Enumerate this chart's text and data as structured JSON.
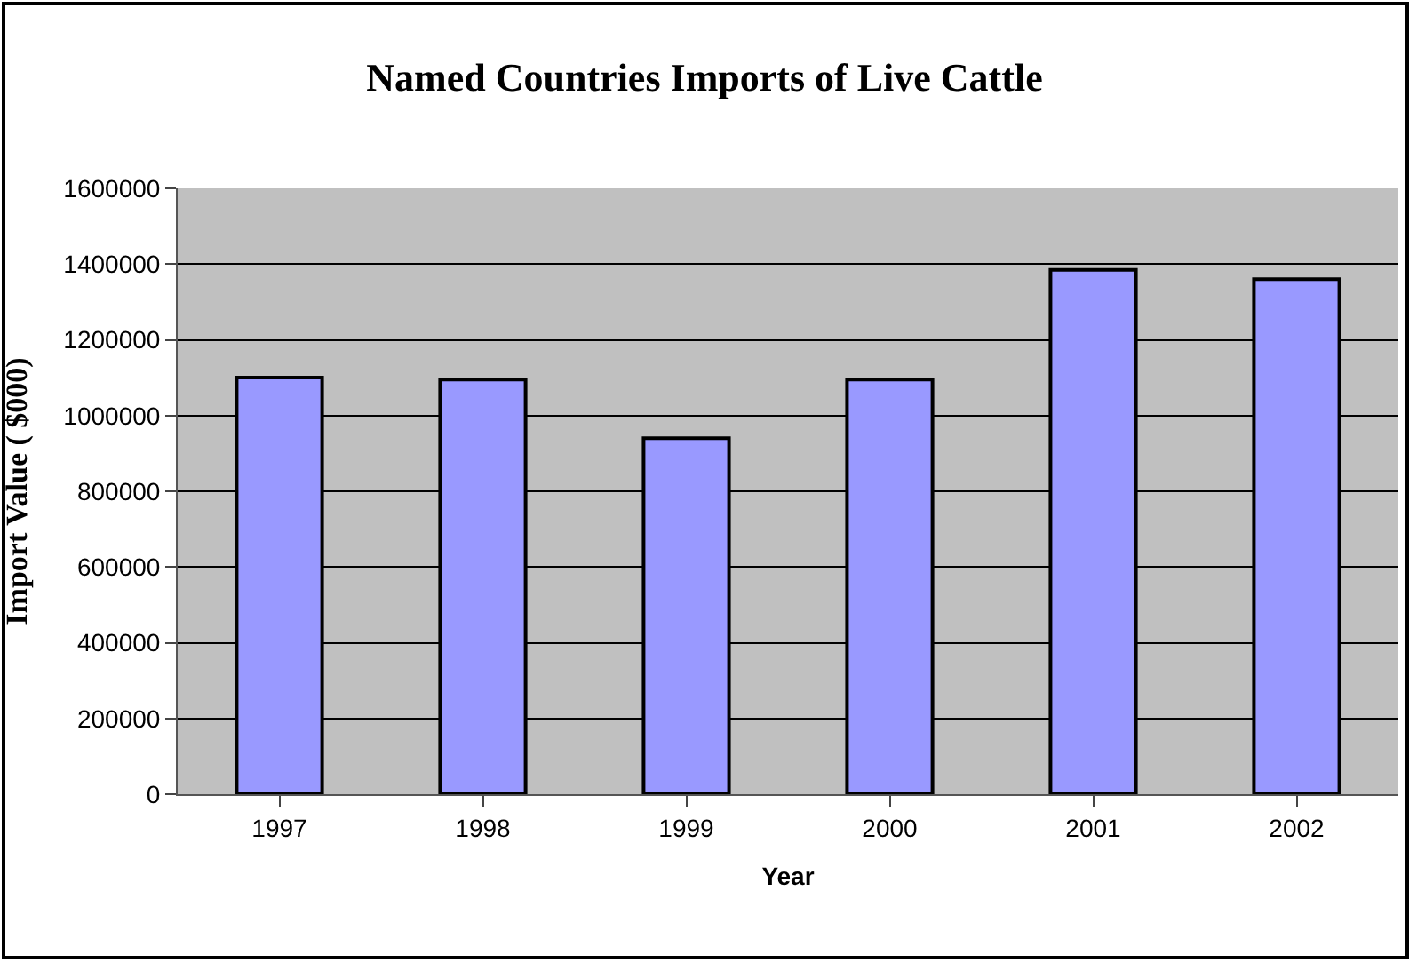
{
  "chart_data": {
    "type": "bar",
    "title": "Named Countries Imports of Live Cattle",
    "xlabel": "Year",
    "ylabel": "Import Value ( $000)",
    "categories": [
      "1997",
      "1998",
      "1999",
      "2000",
      "2001",
      "2002"
    ],
    "series": [
      {
        "color": "#9999ff",
        "values": [
          1100000,
          1095000,
          940000,
          1095000,
          1385000,
          1360000
        ]
      }
    ],
    "ylim": [
      0,
      1600000
    ],
    "yticks": [
      0,
      200000,
      400000,
      600000,
      800000,
      1000000,
      1200000,
      1400000,
      1600000
    ],
    "grid": "y"
  }
}
